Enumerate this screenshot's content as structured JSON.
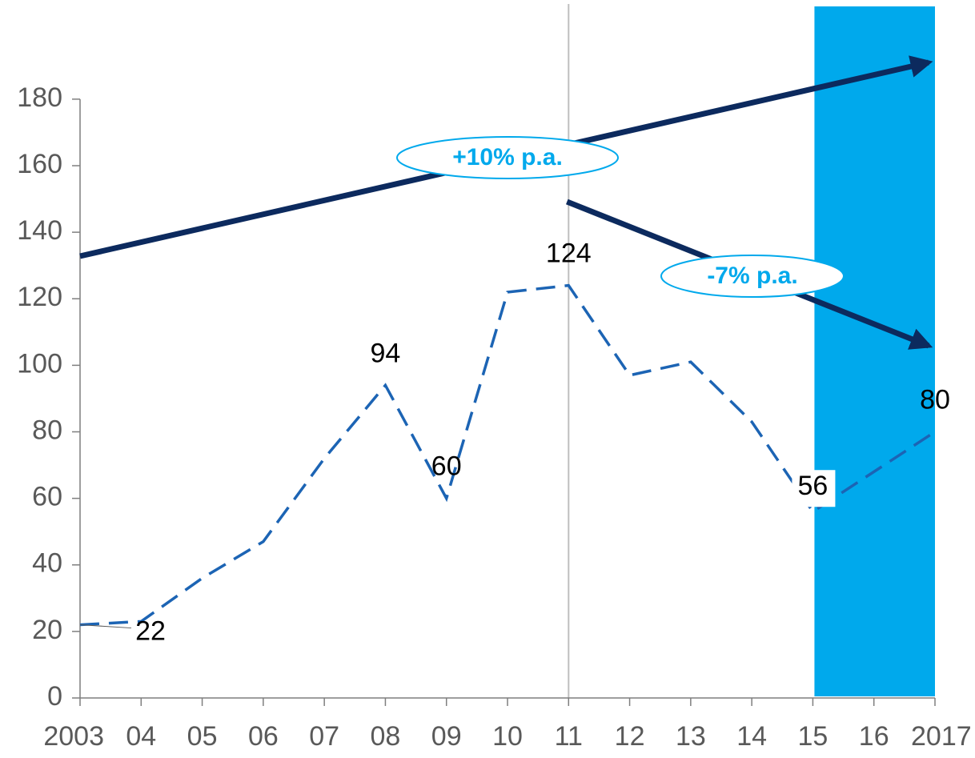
{
  "chart_data": {
    "type": "line",
    "categories": [
      "2003",
      "04",
      "05",
      "06",
      "07",
      "08",
      "09",
      "10",
      "11",
      "12",
      "13",
      "14",
      "15",
      "16",
      "2017"
    ],
    "series": [
      {
        "color": "#1c64b4",
        "values": [
          22,
          23,
          36,
          47,
          72,
          94,
          60,
          122,
          124,
          97,
          101,
          83,
          56,
          68,
          80
        ],
        "value_labels": [
          "22",
          null,
          null,
          null,
          null,
          "94",
          "60",
          null,
          "124",
          null,
          null,
          null,
          "56",
          null,
          "80"
        ]
      }
    ],
    "ylim": [
      0,
      208
    ],
    "yticks": [
      0,
      20,
      40,
      60,
      80,
      100,
      120,
      140,
      160,
      180
    ],
    "annotations": [
      "+10% p.a.",
      "-7% p.a."
    ],
    "highlight_color": "#00a9ec",
    "arrow_color": "#0c2a5e"
  }
}
